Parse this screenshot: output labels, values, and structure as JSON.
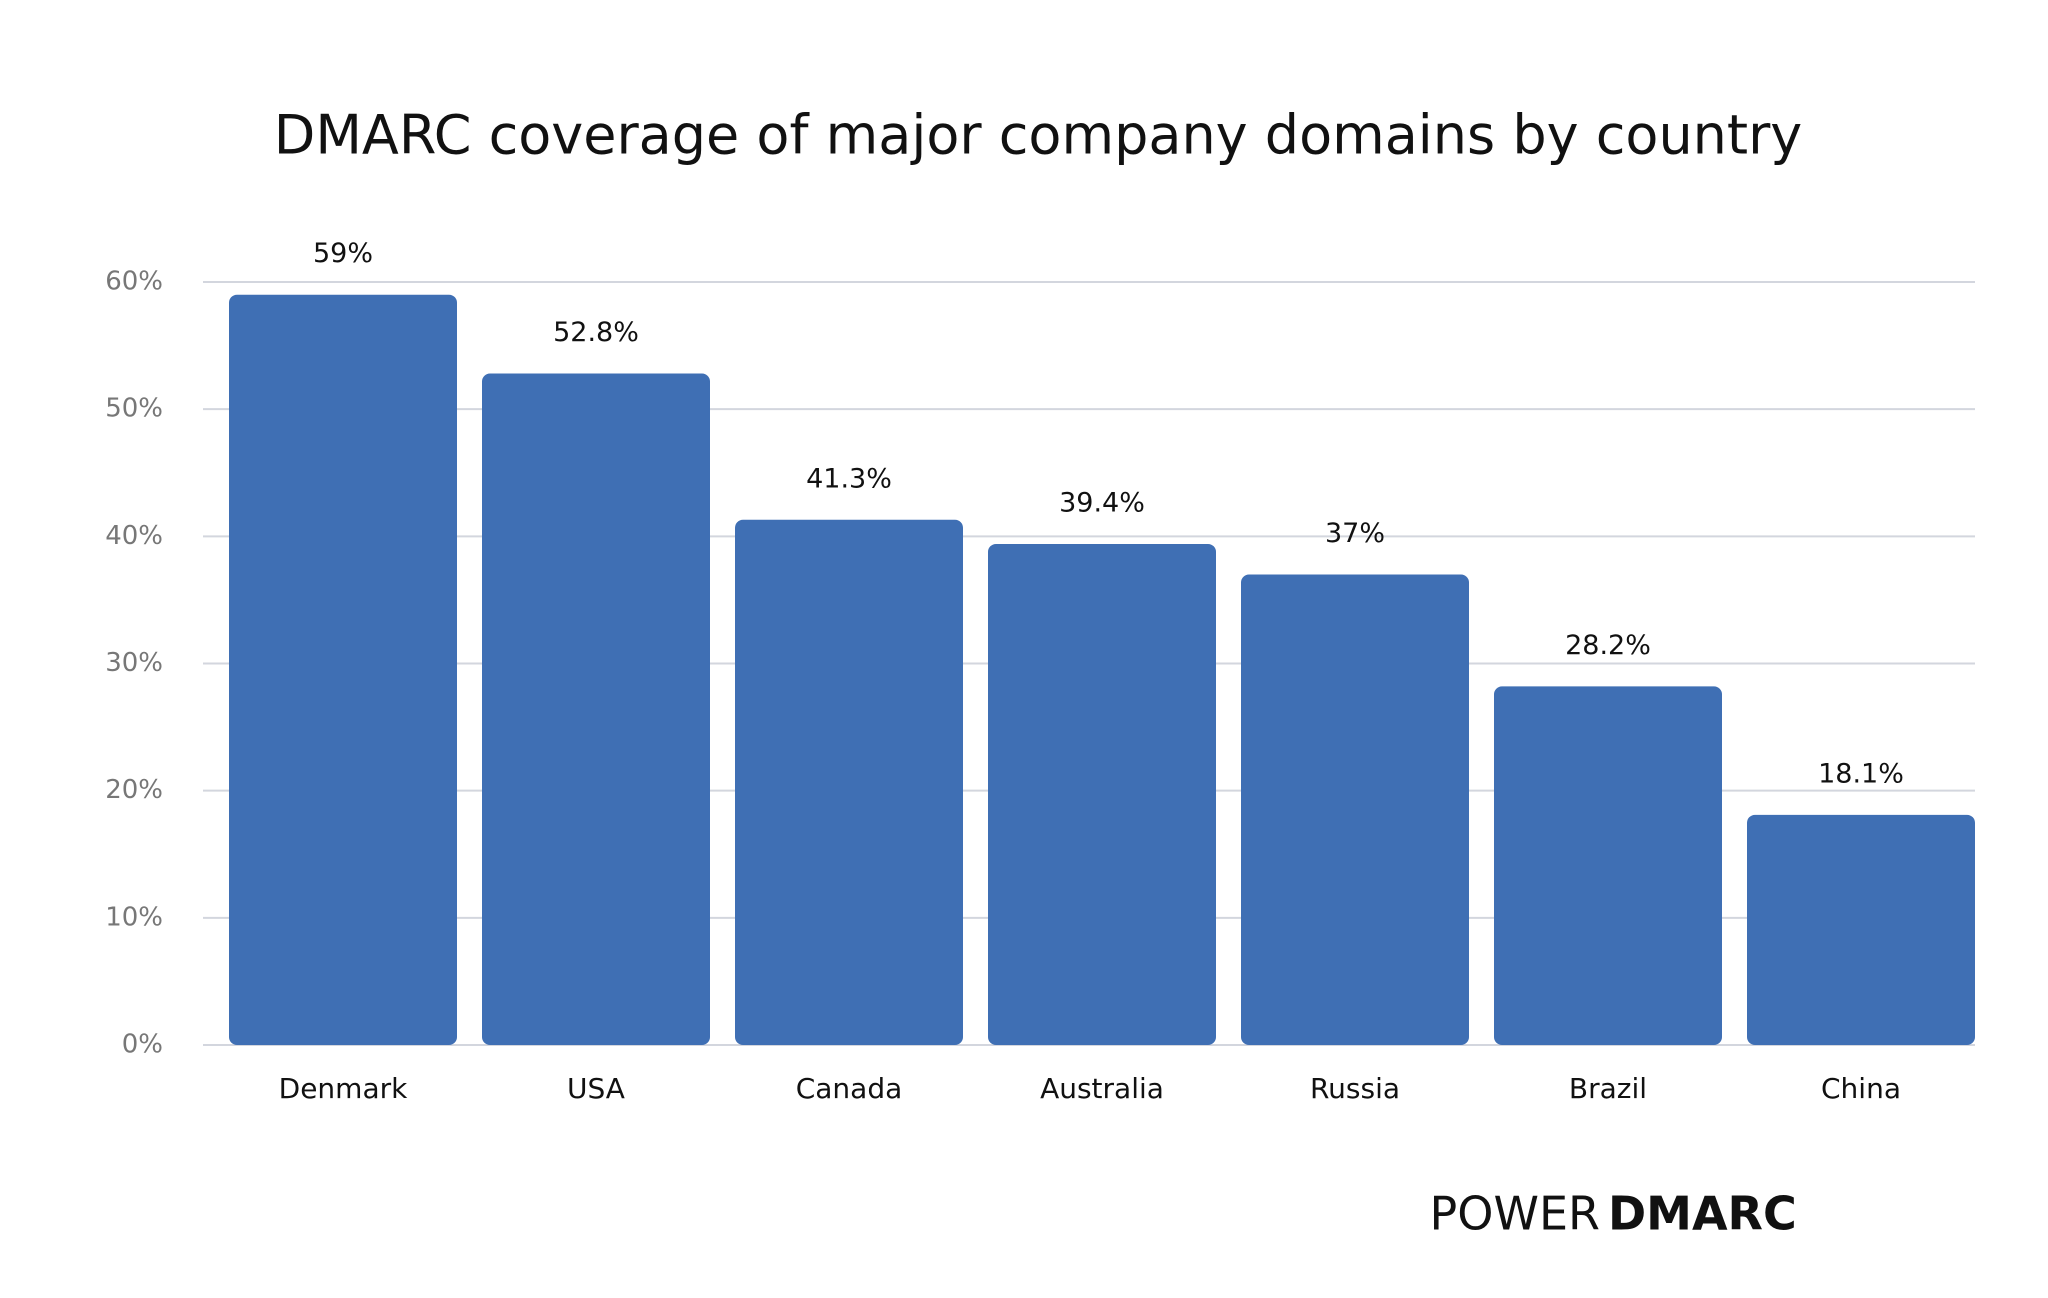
{
  "chart_data": {
    "type": "bar",
    "title": "DMARC coverage of major company domains by country",
    "categories": [
      "Denmark",
      "USA",
      "Canada",
      "Australia",
      "Russia",
      "Brazil",
      "China"
    ],
    "values": [
      59,
      52.8,
      41.3,
      39.4,
      37,
      28.2,
      18.1
    ],
    "value_labels": [
      "59%",
      "52.8%",
      "41.3%",
      "39.4%",
      "37%",
      "28.2%",
      "18.1%"
    ],
    "color": "#3f6fb4",
    "ylim": [
      0,
      60
    ],
    "yticks": [
      {
        "value": 0,
        "label": "0%"
      },
      {
        "value": 10,
        "label": "10%"
      },
      {
        "value": 20,
        "label": "20%"
      },
      {
        "value": 30,
        "label": "30%"
      },
      {
        "value": 40,
        "label": "40%"
      },
      {
        "value": 50,
        "label": "50%"
      },
      {
        "value": 60,
        "label": "60%"
      }
    ],
    "grid": true,
    "logo": [
      "POWER",
      "DMARC"
    ]
  }
}
